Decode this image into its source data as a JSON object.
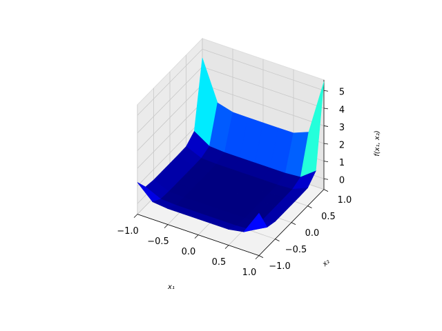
{
  "chart_data": {
    "type": "surface3d",
    "xlabel": "x₁",
    "ylabel": "x₂",
    "zlabel": "f(x₁, x₂)",
    "x": [
      -1,
      -0.75,
      -0.5,
      -0.25,
      0,
      0.25,
      0.5,
      0.75,
      1
    ],
    "y": [
      -1,
      -0.75,
      -0.5,
      -0.25,
      0,
      0.25,
      0.5,
      0.75,
      1
    ],
    "z": [
      [
        1.2,
        0.39,
        0.3,
        0.3,
        0.3,
        0.3,
        0.3,
        0.45,
        1.8
      ],
      [
        0.48,
        0.08,
        0.03,
        0.03,
        0.03,
        0.03,
        0.03,
        0.08,
        0.54
      ],
      [
        0.4,
        0.04,
        0,
        0,
        0,
        0,
        0,
        0.04,
        0.4
      ],
      [
        0.4,
        0.04,
        0,
        0,
        0,
        0,
        0,
        0.04,
        0.4
      ],
      [
        0.4,
        0.04,
        0,
        0,
        0,
        0,
        0,
        0.04,
        0.4
      ],
      [
        0.4,
        0.04,
        0,
        0,
        0,
        0,
        0,
        0.04,
        0.4
      ],
      [
        0.42,
        0.05,
        0.01,
        0.01,
        0.01,
        0.01,
        0.01,
        0.05,
        0.42
      ],
      [
        0.81,
        0.26,
        0.2,
        0.2,
        0.2,
        0.2,
        0.2,
        0.27,
        0.91
      ],
      [
        4.5,
        2.25,
        2.01,
        2,
        2,
        2,
        2.01,
        2.35,
        5.5
      ]
    ],
    "xlim": [
      -1,
      1
    ],
    "ylim": [
      -1,
      1
    ],
    "zlim": [
      -0.6,
      5.6
    ],
    "xticks": [
      {
        "value": -1,
        "label": "−1.0"
      },
      {
        "value": -0.5,
        "label": "−0.5"
      },
      {
        "value": 0,
        "label": "0.0"
      },
      {
        "value": 0.5,
        "label": "0.5"
      },
      {
        "value": 1,
        "label": "1.0"
      }
    ],
    "yticks": [
      {
        "value": -1,
        "label": "−1.0"
      },
      {
        "value": -0.5,
        "label": "−0.5"
      },
      {
        "value": 0,
        "label": "0.0"
      },
      {
        "value": 0.5,
        "label": "0.5"
      },
      {
        "value": 1,
        "label": "1.0"
      }
    ],
    "zticks": [
      0,
      1,
      2,
      3,
      4,
      5
    ],
    "colormap": "jet",
    "clim": [
      0,
      5.5
    ],
    "grid": true
  }
}
